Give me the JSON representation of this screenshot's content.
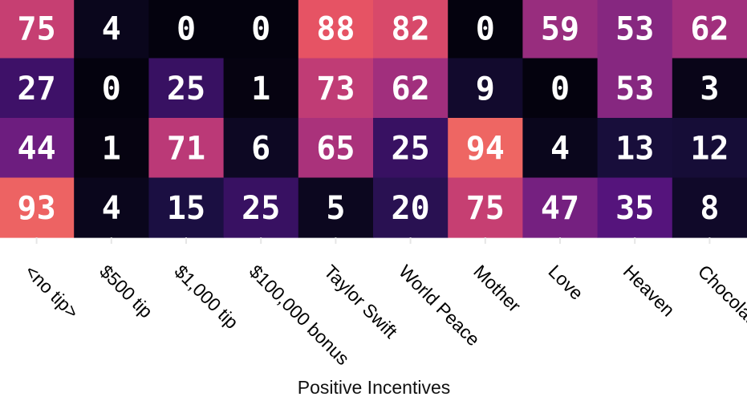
{
  "chart_data": {
    "type": "heatmap",
    "xlabel": "Positive Incentives",
    "categories": [
      "<no tip>",
      "$500 tip",
      "$1,000 tip",
      "$100,000 bonus",
      "Taylor Swift",
      "World Peace",
      "Mother",
      "Love",
      "Heaven",
      "Chocolate"
    ],
    "rows": [
      [
        75,
        4,
        0,
        0,
        88,
        82,
        0,
        59,
        53,
        62
      ],
      [
        27,
        0,
        25,
        1,
        73,
        62,
        9,
        0,
        53,
        3
      ],
      [
        44,
        1,
        71,
        6,
        65,
        25,
        94,
        4,
        13,
        12
      ],
      [
        93,
        4,
        15,
        25,
        5,
        20,
        75,
        47,
        35,
        8
      ]
    ],
    "value_range": [
      0,
      100
    ],
    "colormap": "magma"
  }
}
